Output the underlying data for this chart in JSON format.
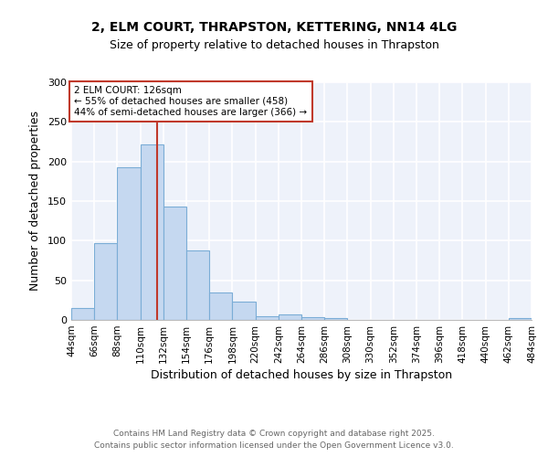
{
  "title_line1": "2, ELM COURT, THRAPSTON, KETTERING, NN14 4LG",
  "title_line2": "Size of property relative to detached houses in Thrapston",
  "xlabel": "Distribution of detached houses by size in Thrapston",
  "ylabel": "Number of detached properties",
  "bin_edges": [
    44,
    66,
    88,
    110,
    132,
    154,
    176,
    198,
    220,
    242,
    264,
    286,
    308,
    330,
    352,
    374,
    396,
    418,
    440,
    462,
    484
  ],
  "counts": [
    15,
    97,
    193,
    222,
    143,
    88,
    35,
    23,
    5,
    7,
    3,
    2,
    0,
    0,
    0,
    0,
    0,
    0,
    0,
    2
  ],
  "bar_color": "#c5d8f0",
  "bar_edgecolor": "#7badd6",
  "property_size": 126,
  "vline_color": "#c0392b",
  "annotation_line1": "2 ELM COURT: 126sqm",
  "annotation_line2": "← 55% of detached houses are smaller (458)",
  "annotation_line3": "44% of semi-detached houses are larger (366) →",
  "annotation_border_color": "#c0392b",
  "ylim": [
    0,
    300
  ],
  "yticks": [
    0,
    50,
    100,
    150,
    200,
    250,
    300
  ],
  "background_color": "#eef2fa",
  "grid_color": "white",
  "footer_line1": "Contains HM Land Registry data © Crown copyright and database right 2025.",
  "footer_line2": "Contains public sector information licensed under the Open Government Licence v3.0."
}
